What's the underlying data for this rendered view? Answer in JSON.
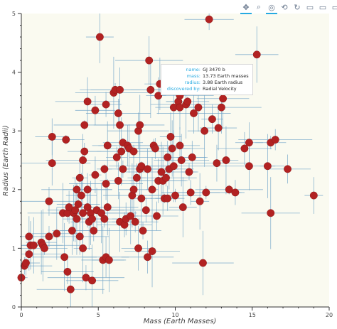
{
  "chart_data": {
    "type": "scatter",
    "title": "",
    "xlabel": "Mass (Earth Masses)",
    "ylabel": "Radius (Earth Radii)",
    "xlim": [
      0,
      20
    ],
    "ylim": [
      0,
      5
    ],
    "xticks": [
      "0",
      "5",
      "10",
      "15",
      "20"
    ],
    "yticks": [
      "0",
      "1",
      "2",
      "3",
      "4",
      "5"
    ],
    "grid": false,
    "marker_color": "#b22222",
    "error_bar_color": "#6fa3c7",
    "background": "#fafaf0",
    "points": [
      {
        "x": 0.0,
        "y": 0.5
      },
      {
        "x": 0.2,
        "y": 0.7
      },
      {
        "x": 0.3,
        "y": 0.75
      },
      {
        "x": 0.5,
        "y": 0.9
      },
      {
        "x": 0.5,
        "y": 1.2
      },
      {
        "x": 0.6,
        "y": 1.05
      },
      {
        "x": 0.8,
        "y": 1.05
      },
      {
        "x": 1.3,
        "y": 1.1
      },
      {
        "x": 1.4,
        "y": 1.05
      },
      {
        "x": 1.5,
        "y": 1.0
      },
      {
        "x": 1.8,
        "y": 1.2
      },
      {
        "x": 1.8,
        "y": 1.8
      },
      {
        "x": 2.0,
        "y": 2.9
      },
      {
        "x": 2.0,
        "y": 2.45
      },
      {
        "x": 2.3,
        "y": 1.25
      },
      {
        "x": 2.7,
        "y": 1.6
      },
      {
        "x": 2.8,
        "y": 0.85
      },
      {
        "x": 2.9,
        "y": 2.85
      },
      {
        "x": 3.0,
        "y": 1.6
      },
      {
        "x": 3.0,
        "y": 0.6
      },
      {
        "x": 3.1,
        "y": 1.7
      },
      {
        "x": 3.2,
        "y": 0.3
      },
      {
        "x": 3.3,
        "y": 1.3
      },
      {
        "x": 3.4,
        "y": 1.6
      },
      {
        "x": 3.5,
        "y": 1.65
      },
      {
        "x": 3.6,
        "y": 1.5
      },
      {
        "x": 3.6,
        "y": 2.0
      },
      {
        "x": 3.7,
        "y": 1.75
      },
      {
        "x": 3.8,
        "y": 2.2
      },
      {
        "x": 3.8,
        "y": 1.2
      },
      {
        "x": 3.9,
        "y": 1.9
      },
      {
        "x": 4.0,
        "y": 2.5
      },
      {
        "x": 4.0,
        "y": 1.6
      },
      {
        "x": 4.0,
        "y": 1.0
      },
      {
        "x": 4.1,
        "y": 3.1
      },
      {
        "x": 4.1,
        "y": 2.65
      },
      {
        "x": 4.2,
        "y": 0.5
      },
      {
        "x": 4.3,
        "y": 2.0
      },
      {
        "x": 4.3,
        "y": 1.7
      },
      {
        "x": 4.3,
        "y": 3.5
      },
      {
        "x": 4.4,
        "y": 1.45
      },
      {
        "x": 4.5,
        "y": 1.6
      },
      {
        "x": 4.6,
        "y": 0.45
      },
      {
        "x": 4.6,
        "y": 1.5
      },
      {
        "x": 4.7,
        "y": 1.3
      },
      {
        "x": 4.8,
        "y": 3.35
      },
      {
        "x": 4.8,
        "y": 2.25
      },
      {
        "x": 4.9,
        "y": 1.65
      },
      {
        "x": 5.1,
        "y": 4.6
      },
      {
        "x": 5.2,
        "y": 1.6
      },
      {
        "x": 5.3,
        "y": 0.8
      },
      {
        "x": 5.4,
        "y": 2.35
      },
      {
        "x": 5.4,
        "y": 1.5
      },
      {
        "x": 5.5,
        "y": 3.45
      },
      {
        "x": 5.5,
        "y": 2.1
      },
      {
        "x": 5.5,
        "y": 0.85
      },
      {
        "x": 5.6,
        "y": 2.75
      },
      {
        "x": 5.6,
        "y": 1.7
      },
      {
        "x": 5.7,
        "y": 0.8
      },
      {
        "x": 6.0,
        "y": 3.65
      },
      {
        "x": 6.1,
        "y": 3.7
      },
      {
        "x": 6.2,
        "y": 2.55
      },
      {
        "x": 6.3,
        "y": 3.3
      },
      {
        "x": 6.3,
        "y": 2.15
      },
      {
        "x": 6.4,
        "y": 3.7
      },
      {
        "x": 6.4,
        "y": 3.1
      },
      {
        "x": 6.4,
        "y": 1.45
      },
      {
        "x": 6.5,
        "y": 2.65
      },
      {
        "x": 6.6,
        "y": 2.8
      },
      {
        "x": 6.6,
        "y": 2.35
      },
      {
        "x": 6.7,
        "y": 1.4
      },
      {
        "x": 6.8,
        "y": 1.5
      },
      {
        "x": 6.9,
        "y": 2.75
      },
      {
        "x": 7.0,
        "y": 2.7
      },
      {
        "x": 7.1,
        "y": 1.55
      },
      {
        "x": 7.2,
        "y": 1.9
      },
      {
        "x": 7.3,
        "y": 2.0
      },
      {
        "x": 7.3,
        "y": 2.65
      },
      {
        "x": 7.4,
        "y": 1.45
      },
      {
        "x": 7.5,
        "y": 2.2
      },
      {
        "x": 7.6,
        "y": 3.0
      },
      {
        "x": 7.6,
        "y": 1.0
      },
      {
        "x": 7.7,
        "y": 2.35
      },
      {
        "x": 7.7,
        "y": 3.1
      },
      {
        "x": 7.8,
        "y": 1.85
      },
      {
        "x": 7.8,
        "y": 2.4
      },
      {
        "x": 7.9,
        "y": 1.3
      },
      {
        "x": 8.1,
        "y": 1.65
      },
      {
        "x": 8.2,
        "y": 0.85
      },
      {
        "x": 8.2,
        "y": 2.35
      },
      {
        "x": 8.3,
        "y": 4.2
      },
      {
        "x": 8.4,
        "y": 3.7
      },
      {
        "x": 8.5,
        "y": 2.0
      },
      {
        "x": 8.5,
        "y": 0.95
      },
      {
        "x": 8.6,
        "y": 2.75
      },
      {
        "x": 8.7,
        "y": 2.7
      },
      {
        "x": 8.8,
        "y": 1.55
      },
      {
        "x": 8.9,
        "y": 3.6
      },
      {
        "x": 8.9,
        "y": 2.15
      },
      {
        "x": 9.0,
        "y": 3.8
      },
      {
        "x": 9.1,
        "y": 2.3
      },
      {
        "x": 9.2,
        "y": 2.15
      },
      {
        "x": 9.3,
        "y": 1.85
      },
      {
        "x": 9.4,
        "y": 2.2
      },
      {
        "x": 9.5,
        "y": 1.85
      },
      {
        "x": 9.5,
        "y": 2.55
      },
      {
        "x": 9.6,
        "y": 2.35
      },
      {
        "x": 9.7,
        "y": 2.9
      },
      {
        "x": 9.8,
        "y": 2.7
      },
      {
        "x": 9.9,
        "y": 3.4
      },
      {
        "x": 9.9,
        "y": 2.4
      },
      {
        "x": 10.0,
        "y": 1.9
      },
      {
        "x": 10.2,
        "y": 3.5
      },
      {
        "x": 10.3,
        "y": 3.6
      },
      {
        "x": 10.3,
        "y": 2.75
      },
      {
        "x": 10.3,
        "y": 3.4
      },
      {
        "x": 10.4,
        "y": 2.5
      },
      {
        "x": 10.5,
        "y": 1.7
      },
      {
        "x": 10.7,
        "y": 3.45
      },
      {
        "x": 10.8,
        "y": 3.5
      },
      {
        "x": 10.9,
        "y": 2.3
      },
      {
        "x": 11.0,
        "y": 1.95
      },
      {
        "x": 11.1,
        "y": 2.55
      },
      {
        "x": 11.2,
        "y": 3.3
      },
      {
        "x": 11.5,
        "y": 3.4
      },
      {
        "x": 11.6,
        "y": 1.8
      },
      {
        "x": 11.8,
        "y": 0.75
      },
      {
        "x": 11.9,
        "y": 3.0
      },
      {
        "x": 12.0,
        "y": 1.95
      },
      {
        "x": 12.2,
        "y": 4.9
      },
      {
        "x": 12.4,
        "y": 3.2
      },
      {
        "x": 12.7,
        "y": 2.45
      },
      {
        "x": 12.8,
        "y": 3.05
      },
      {
        "x": 13.0,
        "y": 3.4
      },
      {
        "x": 13.1,
        "y": 3.55
      },
      {
        "x": 13.3,
        "y": 2.5
      },
      {
        "x": 13.5,
        "y": 2.0
      },
      {
        "x": 13.7,
        "y": 3.9
      },
      {
        "x": 13.9,
        "y": 1.95
      },
      {
        "x": 14.5,
        "y": 2.7
      },
      {
        "x": 14.8,
        "y": 2.8
      },
      {
        "x": 14.8,
        "y": 2.4
      },
      {
        "x": 15.3,
        "y": 4.3
      },
      {
        "x": 16.0,
        "y": 2.4
      },
      {
        "x": 16.2,
        "y": 1.6
      },
      {
        "x": 16.2,
        "y": 2.8
      },
      {
        "x": 16.5,
        "y": 2.85
      },
      {
        "x": 17.3,
        "y": 2.35
      },
      {
        "x": 19.0,
        "y": 1.9
      }
    ]
  },
  "tooltip": {
    "rows": [
      {
        "key": "name:",
        "value": "GJ 3470 b"
      },
      {
        "key": "mass:",
        "value": "13.73 Earth masses"
      },
      {
        "key": "radius:",
        "value": "3.88 Earth radius"
      },
      {
        "key": "discovered by:",
        "value": "Radial Velocity"
      }
    ]
  },
  "toolbar": {
    "tools": [
      {
        "name": "pan-tool-icon",
        "glyph": "✥"
      },
      {
        "name": "box-zoom-tool-icon",
        "glyph": "⌕"
      },
      {
        "name": "wheel-zoom-tool-icon",
        "glyph": "◎"
      },
      {
        "name": "lasso-tool-icon",
        "glyph": "⟲"
      },
      {
        "name": "reset-tool-icon",
        "glyph": "↻"
      },
      {
        "name": "save-tool-icon",
        "glyph": "▭"
      },
      {
        "name": "hover-tool-icon",
        "glyph": "▭"
      },
      {
        "name": "help-tool-icon",
        "glyph": "▭"
      }
    ]
  }
}
